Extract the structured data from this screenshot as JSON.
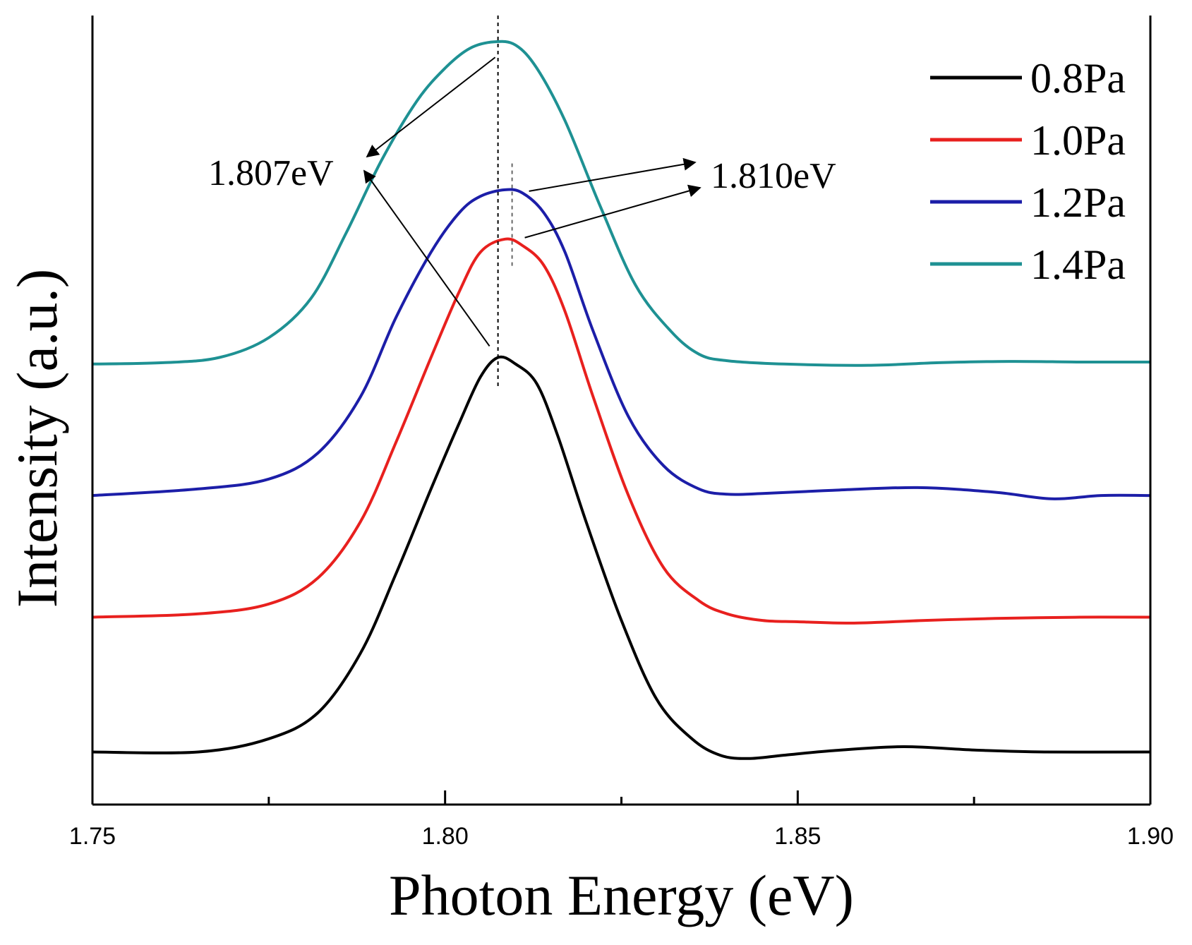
{
  "chart_data": {
    "type": "line",
    "title": "",
    "xlabel": "Photon Energy (eV)",
    "ylabel": "Intensity (a.u.)",
    "xlim": [
      1.75,
      1.9
    ],
    "ylim": [
      -0.08,
      1.12
    ],
    "xticks": [
      1.75,
      1.8,
      1.85,
      1.9
    ],
    "xtick_labels": [
      "1.75",
      "1.80",
      "1.85",
      "1.90"
    ],
    "grid": false,
    "legend_position": "top-right",
    "series": [
      {
        "name": "0.8Pa",
        "color": "#000000",
        "x": [
          1.75,
          1.765,
          1.775,
          1.782,
          1.788,
          1.793,
          1.798,
          1.802,
          1.805,
          1.8075,
          1.81,
          1.813,
          1.816,
          1.82,
          1.825,
          1.83,
          1.835,
          1.839,
          1.843,
          1.848,
          1.855,
          1.865,
          1.875,
          1.885,
          1.9
        ],
        "y": [
          0.0,
          0.0,
          0.02,
          0.06,
          0.15,
          0.27,
          0.4,
          0.5,
          0.57,
          0.6,
          0.59,
          0.56,
          0.48,
          0.35,
          0.2,
          0.08,
          0.02,
          -0.005,
          -0.01,
          -0.005,
          0.002,
          0.008,
          0.003,
          0.0,
          0.0
        ]
      },
      {
        "name": "1.0Pa",
        "color": "#e8201e",
        "x": [
          1.75,
          1.765,
          1.775,
          1.782,
          1.788,
          1.793,
          1.798,
          1.802,
          1.805,
          1.8085,
          1.811,
          1.814,
          1.817,
          1.821,
          1.826,
          1.831,
          1.836,
          1.84,
          1.845,
          1.85,
          1.858,
          1.868,
          1.878,
          1.89,
          1.9
        ],
        "y": [
          0.205,
          0.21,
          0.225,
          0.265,
          0.35,
          0.47,
          0.6,
          0.7,
          0.76,
          0.78,
          0.77,
          0.74,
          0.67,
          0.54,
          0.39,
          0.28,
          0.23,
          0.21,
          0.2,
          0.198,
          0.196,
          0.2,
          0.203,
          0.205,
          0.205
        ]
      },
      {
        "name": "1.2Pa",
        "color": "#1c1ea8",
        "x": [
          1.75,
          1.765,
          1.775,
          1.782,
          1.788,
          1.793,
          1.798,
          1.802,
          1.805,
          1.8085,
          1.811,
          1.814,
          1.817,
          1.821,
          1.826,
          1.831,
          1.836,
          1.84,
          1.845,
          1.855,
          1.867,
          1.878,
          1.886,
          1.893,
          1.9
        ],
        "y": [
          0.39,
          0.4,
          0.415,
          0.455,
          0.54,
          0.66,
          0.76,
          0.82,
          0.845,
          0.855,
          0.85,
          0.82,
          0.76,
          0.64,
          0.51,
          0.435,
          0.4,
          0.392,
          0.393,
          0.398,
          0.402,
          0.395,
          0.385,
          0.39,
          0.39
        ]
      },
      {
        "name": "1.4Pa",
        "color": "#1e9193",
        "x": [
          1.75,
          1.76,
          1.768,
          1.775,
          1.781,
          1.786,
          1.791,
          1.796,
          1.8,
          1.8035,
          1.807,
          1.81,
          1.813,
          1.817,
          1.822,
          1.827,
          1.832,
          1.836,
          1.84,
          1.848,
          1.86,
          1.87,
          1.88,
          1.89,
          1.9
        ],
        "y": [
          0.59,
          0.592,
          0.6,
          0.63,
          0.69,
          0.79,
          0.9,
          0.99,
          1.04,
          1.07,
          1.08,
          1.075,
          1.04,
          0.96,
          0.83,
          0.71,
          0.64,
          0.605,
          0.595,
          0.59,
          0.588,
          0.592,
          0.594,
          0.593,
          0.593
        ]
      }
    ],
    "annotations": [
      {
        "text": "1.807eV",
        "peak_x": 1.8075,
        "series": [
          "1.4Pa",
          "0.8Pa"
        ]
      },
      {
        "text": "1.810eV",
        "peak_x": 1.8095,
        "series": [
          "1.2Pa",
          "1.0Pa"
        ]
      }
    ]
  }
}
